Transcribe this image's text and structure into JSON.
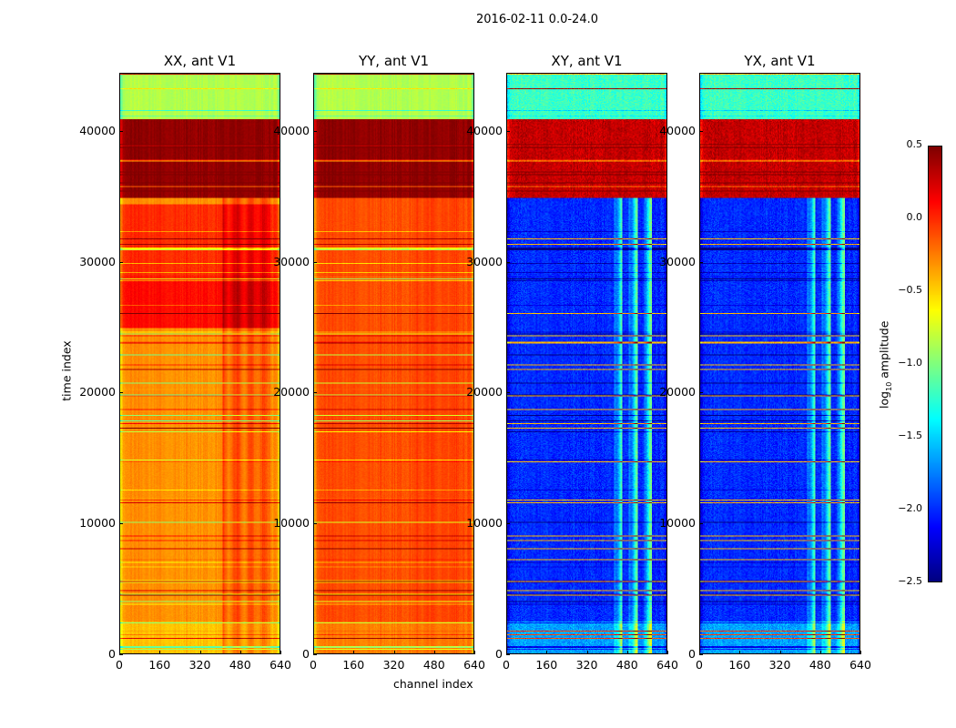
{
  "chart_data": {
    "type": "heatmap",
    "title": "2016-02-11 0.0-24.0",
    "xlabel": "channel index",
    "ylabel": "time index",
    "xlim": [
      0,
      640
    ],
    "ylim": [
      0,
      44450
    ],
    "xticks": [
      "0",
      "160",
      "320",
      "480",
      "640"
    ],
    "yticks": [
      "0",
      "10000",
      "20000",
      "30000",
      "40000"
    ],
    "colormap": "jet",
    "colorbar": {
      "label_main": "log",
      "label_sub": "10",
      "label_rest": " amplitude",
      "range": [
        -2.5,
        0.5
      ],
      "ticks": [
        "0.5",
        "0.0",
        "−0.5",
        "−1.0",
        "−1.5",
        "−2.0",
        "−2.5"
      ]
    },
    "panels": [
      {
        "title": "XX, ant V1",
        "base": -0.35,
        "rfi_boost": 0.25,
        "bands": [
          [
            41000,
            44450,
            -0.9
          ],
          [
            35000,
            41000,
            0.4
          ],
          [
            25000,
            29000,
            0.05
          ],
          [
            29000,
            34500,
            -0.05
          ],
          [
            0,
            2500,
            -0.5
          ]
        ]
      },
      {
        "title": "YY, ant V1",
        "base": -0.15,
        "rfi_boost": 0.05,
        "bands": [
          [
            41000,
            44450,
            -0.9
          ],
          [
            35000,
            41000,
            0.4
          ],
          [
            0,
            2500,
            -0.3
          ]
        ]
      },
      {
        "title": "XY, ant V1",
        "base": -2.05,
        "rfi_boost": 1.0,
        "bands": [
          [
            41000,
            44450,
            -1.25
          ],
          [
            35000,
            41000,
            0.25
          ],
          [
            0,
            2500,
            -1.7
          ]
        ]
      },
      {
        "title": "YX, ant V1",
        "base": -2.05,
        "rfi_boost": 1.0,
        "bands": [
          [
            41000,
            44450,
            -1.25
          ],
          [
            35000,
            41000,
            0.25
          ],
          [
            0,
            2500,
            -1.7
          ]
        ]
      }
    ]
  }
}
